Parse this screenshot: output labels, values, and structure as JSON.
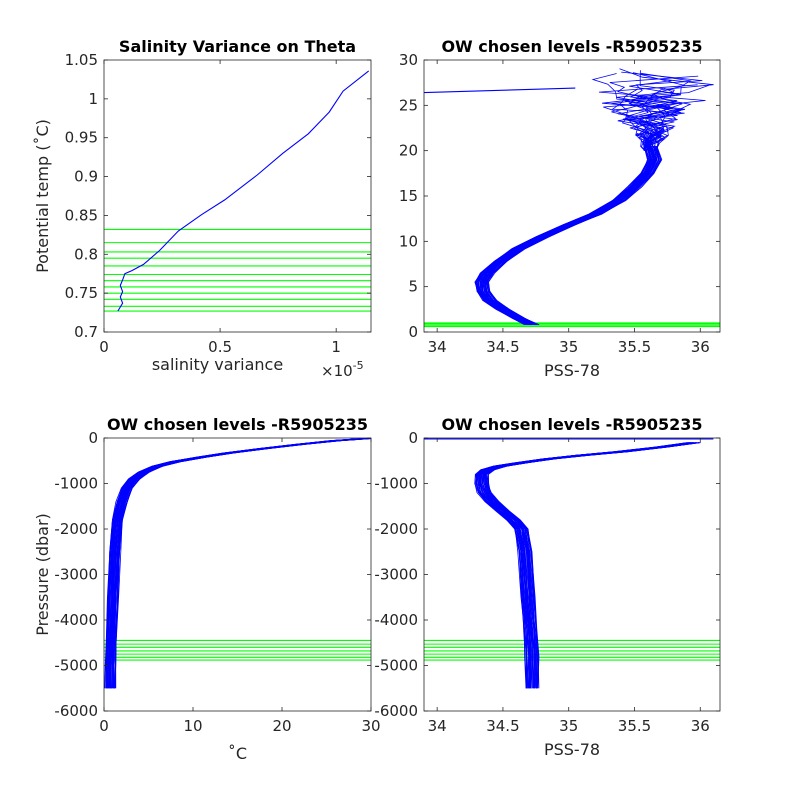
{
  "colors": {
    "profile": "#0000ff",
    "levels": "#00ff00",
    "axis": "#262626"
  },
  "chart_data": [
    {
      "type": "line",
      "title": "Salinity Variance on Theta",
      "xlabel": "salinity variance",
      "x_exponent_base": "×10",
      "x_exponent": "-5",
      "ylabel": "Potential temp (˚C)",
      "xlim": [
        0,
        1.15e-05
      ],
      "ylim": [
        0.7,
        1.05
      ],
      "xticks": [
        0,
        5e-06,
        1e-05
      ],
      "xtick_labels": [
        "0",
        "0.5",
        "1"
      ],
      "yticks": [
        0.7,
        0.75,
        0.8,
        0.85,
        0.9,
        0.95,
        1.0,
        1.05
      ],
      "ytick_labels": [
        "0.7",
        "0.75",
        "0.8",
        "0.85",
        "0.9",
        "0.95",
        "1",
        "1.05"
      ],
      "series": [
        {
          "kind": "profile",
          "x": [
            6e-07,
            8e-07,
            7e-07,
            8e-07,
            7e-07,
            8e-07,
            9e-07,
            1.2e-06,
            1.7e-06,
            2.4e-06,
            3.2e-06,
            4.2e-06,
            5.2e-06,
            6.6e-06,
            7.7e-06,
            8.8e-06,
            9.7e-06,
            1.03e-05,
            1.14e-05
          ],
          "y": [
            0.727,
            0.737,
            0.745,
            0.752,
            0.76,
            0.767,
            0.775,
            0.779,
            0.787,
            0.805,
            0.83,
            0.851,
            0.87,
            0.902,
            0.93,
            0.955,
            0.983,
            1.01,
            1.036
          ]
        }
      ],
      "hlines": [
        0.727,
        0.733,
        0.742,
        0.75,
        0.758,
        0.766,
        0.774,
        0.785,
        0.795,
        0.803,
        0.815,
        0.832
      ]
    },
    {
      "type": "line",
      "title": "OW chosen levels -R5905235",
      "xlabel": "PSS-78",
      "ylabel": "",
      "xlim": [
        33.9,
        36.15
      ],
      "ylim": [
        0,
        30
      ],
      "xticks": [
        34,
        34.5,
        35,
        35.5,
        36
      ],
      "xtick_labels": [
        "34",
        "34.5",
        "35",
        "35.5",
        "36"
      ],
      "yticks": [
        0,
        5,
        10,
        15,
        20,
        25,
        30
      ],
      "ytick_labels": [
        "0",
        "5",
        "10",
        "15",
        "20",
        "25",
        "30"
      ],
      "series": [
        {
          "kind": "band",
          "profiles": 40,
          "spread": 0.05,
          "x": [
            34.72,
            34.62,
            34.5,
            34.4,
            34.35,
            34.34,
            34.38,
            34.48,
            34.62,
            34.8,
            35.0,
            35.2,
            35.38,
            35.5,
            35.6,
            35.65,
            35.62
          ],
          "y": [
            0.8,
            1.5,
            2.5,
            3.5,
            4.5,
            5.5,
            6.5,
            7.8,
            9.2,
            10.5,
            11.8,
            13.0,
            14.5,
            16.0,
            17.5,
            19.0,
            20.5
          ]
        },
        {
          "kind": "scribble",
          "profiles": 40,
          "x_range": [
            35.05,
            36.15
          ],
          "y_range": [
            20,
            29.2
          ]
        },
        {
          "kind": "profile",
          "x": [
            33.9,
            35.05
          ],
          "y": [
            26.4,
            26.9
          ]
        }
      ],
      "hlines": [
        0.6,
        0.75,
        0.9,
        1.0
      ]
    },
    {
      "type": "line",
      "title": "OW chosen levels -R5905235",
      "xlabel": "˚C",
      "ylabel": "Pressure (dbar)",
      "xlim": [
        0,
        30
      ],
      "ylim": [
        -6000,
        0
      ],
      "xticks": [
        0,
        10,
        20,
        30
      ],
      "xtick_labels": [
        "0",
        "10",
        "20",
        "30"
      ],
      "yticks": [
        -6000,
        -5000,
        -4000,
        -3000,
        -2000,
        -1000,
        0
      ],
      "ytick_labels": [
        "-6000",
        "-5000",
        "-4000",
        "-3000",
        "-2000",
        "-1000",
        "0"
      ],
      "series": [
        {
          "kind": "band",
          "profiles": 40,
          "spread": 0.6,
          "x": [
            0.7,
            0.75,
            0.85,
            1.0,
            1.2,
            1.5,
            2.0,
            2.6,
            3.4,
            4.5,
            6.0,
            8.0,
            11.0,
            14.0,
            18.0,
            22.0,
            26.0,
            29.5
          ],
          "y": [
            -5500,
            -5000,
            -4500,
            -3500,
            -2500,
            -1800,
            -1400,
            -1100,
            -900,
            -750,
            -620,
            -520,
            -420,
            -330,
            -230,
            -140,
            -60,
            -10
          ]
        }
      ],
      "hlines": [
        -4450,
        -4530,
        -4600,
        -4680,
        -4750,
        -4820,
        -4880
      ]
    },
    {
      "type": "line",
      "title": "OW chosen levels -R5905235",
      "xlabel": "PSS-78",
      "ylabel": "",
      "xlim": [
        33.9,
        36.15
      ],
      "ylim": [
        -6000,
        0
      ],
      "xticks": [
        34,
        34.5,
        35,
        35.5,
        36
      ],
      "xtick_labels": [
        "34",
        "34.5",
        "35",
        "35.5",
        "36"
      ],
      "yticks": [
        -6000,
        -5000,
        -4000,
        -3000,
        -2000,
        -1000,
        0
      ],
      "ytick_labels": [
        "-6000",
        "-5000",
        "-4000",
        "-3000",
        "-2000",
        "-1000",
        "0"
      ],
      "series": [
        {
          "kind": "band",
          "profiles": 40,
          "spread": 0.05,
          "x": [
            34.72,
            34.72,
            34.71,
            34.69,
            34.67,
            34.64,
            34.58,
            34.5,
            34.42,
            34.36,
            34.34,
            34.34,
            34.38,
            34.48,
            34.65,
            34.85,
            35.1,
            35.4,
            35.7,
            35.95
          ],
          "y": [
            -5500,
            -4800,
            -4200,
            -3500,
            -2500,
            -2000,
            -1800,
            -1600,
            -1400,
            -1200,
            -1000,
            -800,
            -700,
            -620,
            -540,
            -460,
            -380,
            -300,
            -200,
            -100
          ]
        },
        {
          "kind": "profile",
          "x": [
            33.9,
            35.6,
            36.1
          ],
          "y": [
            -20,
            -20,
            -20
          ]
        }
      ],
      "hlines": [
        -4450,
        -4530,
        -4600,
        -4680,
        -4750,
        -4820,
        -4880
      ]
    }
  ]
}
